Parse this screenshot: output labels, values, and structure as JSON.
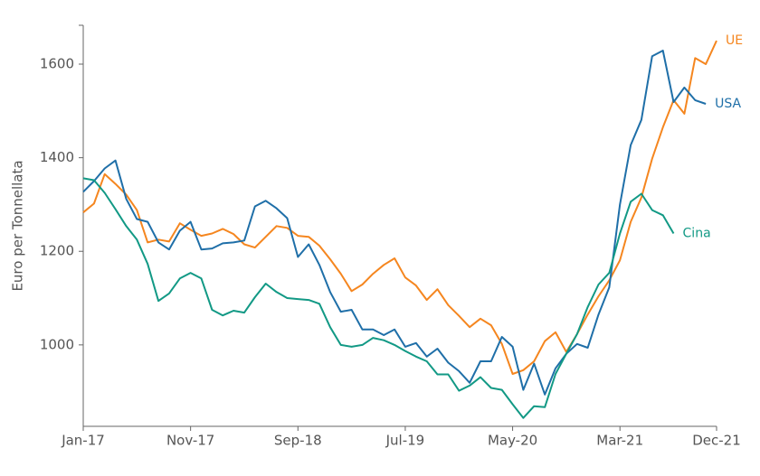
{
  "chart_data": {
    "type": "line",
    "y_label": "Euro per Tonnellata",
    "categories": [
      "Jan-17",
      null,
      null,
      null,
      null,
      null,
      null,
      null,
      null,
      null,
      "Nov-17",
      null,
      null,
      null,
      null,
      null,
      null,
      null,
      null,
      null,
      "Sep-18",
      null,
      null,
      null,
      null,
      null,
      null,
      null,
      null,
      null,
      "Jul-19",
      null,
      null,
      null,
      null,
      null,
      null,
      null,
      null,
      null,
      "May-20",
      null,
      null,
      null,
      null,
      null,
      null,
      null,
      null,
      null,
      "Mar-21",
      null,
      null,
      null,
      null,
      null,
      null,
      null,
      null,
      "Dec-21"
    ],
    "series": [
      {
        "name": "UE",
        "color": "#f5861f",
        "values": [
          1283,
          1302,
          1365,
          1344,
          1321,
          1288,
          1219,
          1225,
          1221,
          1260,
          1246,
          1233,
          1238,
          1248,
          1237,
          1215,
          1208,
          1231,
          1254,
          1250,
          1233,
          1231,
          1212,
          1183,
          1152,
          1115,
          1129,
          1152,
          1171,
          1185,
          1144,
          1127,
          1096,
          1119,
          1085,
          1062,
          1038,
          1056,
          1042,
          1002,
          938,
          946,
          965,
          1008,
          1027,
          985,
          1023,
          1065,
          1104,
          1138,
          1181,
          1263,
          1315,
          1398,
          1465,
          1523,
          1494,
          1613,
          1600,
          1650
        ]
      },
      {
        "name": "USA",
        "color": "#1f6fa8",
        "values": [
          1327,
          1350,
          1377,
          1394,
          1312,
          1269,
          1263,
          1219,
          1204,
          1244,
          1263,
          1204,
          1206,
          1217,
          1219,
          1223,
          1296,
          1308,
          1292,
          1271,
          1188,
          1215,
          1171,
          1113,
          1071,
          1075,
          1033,
          1033,
          1021,
          1033,
          996,
          1004,
          975,
          992,
          962,
          944,
          919,
          965,
          965,
          1017,
          996,
          904,
          960,
          894,
          950,
          981,
          1002,
          994,
          1065,
          1123,
          1300,
          1427,
          1481,
          1617,
          1629,
          1519,
          1550,
          1523,
          1515,
          null
        ]
      },
      {
        "name": "Cina",
        "color": "#129985",
        "values": [
          1356,
          1352,
          1325,
          1290,
          1254,
          1225,
          1173,
          1094,
          1110,
          1142,
          1154,
          1142,
          1075,
          1063,
          1073,
          1069,
          1102,
          1131,
          1113,
          1100,
          1098,
          1096,
          1088,
          1038,
          1000,
          996,
          1000,
          1015,
          1010,
          1000,
          987,
          975,
          965,
          937,
          937,
          902,
          913,
          931,
          908,
          904,
          873,
          844,
          869,
          867,
          938,
          981,
          1023,
          1081,
          1129,
          1154,
          1238,
          1306,
          1323,
          1288,
          1277,
          1238,
          null,
          null,
          null,
          null
        ]
      }
    ],
    "ylim": [
      826,
      1683
    ],
    "yticks": [
      1000,
      1200,
      1400,
      1600
    ],
    "grid": false
  }
}
